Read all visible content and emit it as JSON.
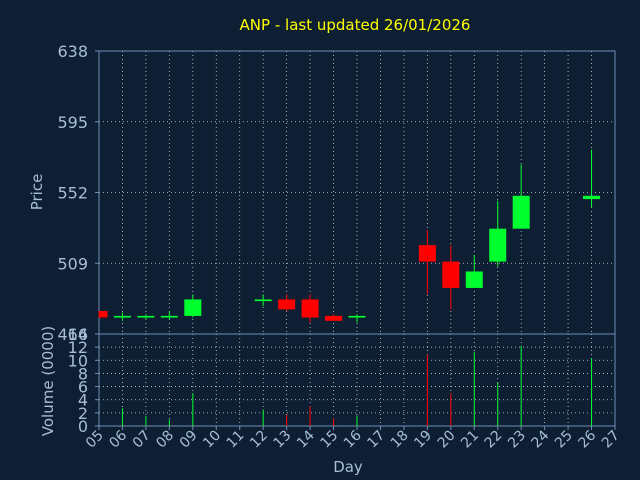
{
  "colors": {
    "background": "#0e1f33",
    "axis": "#6f8fb5",
    "label": "#a7bdd8",
    "title": "#ffff00",
    "grid": "#c8d4e0",
    "up": "#00ff2e",
    "down": "#ff0000"
  },
  "chart_data": {
    "type": "candlestick",
    "title": "ANP - last updated 26/01/2026",
    "xlabel": "Day",
    "price_panel": {
      "ylabel": "Price",
      "ylim": [
        466,
        638
      ],
      "yticks": [
        "638",
        "595",
        "552",
        "509",
        "466"
      ],
      "ytick_values": [
        638,
        595,
        552,
        509,
        466
      ]
    },
    "volume_panel": {
      "ylabel": "Volume (0000)",
      "ylim": [
        0,
        14
      ],
      "yticks": [
        "0",
        "2",
        "4",
        "6",
        "8",
        "10",
        "12",
        "14"
      ],
      "ytick_values": [
        0,
        2,
        4,
        6,
        8,
        10,
        12,
        14
      ]
    },
    "x_categories": [
      "05",
      "06",
      "07",
      "08",
      "09",
      "10",
      "11",
      "12",
      "13",
      "14",
      "15",
      "16",
      "17",
      "18",
      "19",
      "20",
      "21",
      "22",
      "23",
      "24",
      "25",
      "26",
      "27"
    ],
    "grid": true,
    "candles": [
      {
        "day": "05",
        "open": 480.0,
        "close": 476.0,
        "high": 480.0,
        "low": 476.0,
        "volume": 0.0
      },
      {
        "day": "06",
        "open": 476.0,
        "close": 477.0,
        "high": 479.0,
        "low": 474.0,
        "volume": 2.7
      },
      {
        "day": "07",
        "open": 476.0,
        "close": 477.0,
        "high": 478.0,
        "low": 475.0,
        "volume": 1.5
      },
      {
        "day": "08",
        "open": 476.0,
        "close": 477.0,
        "high": 480.0,
        "low": 475.0,
        "volume": 1.0
      },
      {
        "day": "09",
        "open": 477.0,
        "close": 487.0,
        "high": 490.0,
        "low": 476.0,
        "volume": 5.0
      },
      {
        "day": "12",
        "open": 486.0,
        "close": 487.0,
        "high": 490.0,
        "low": 483.0,
        "volume": 2.5
      },
      {
        "day": "13",
        "open": 487.0,
        "close": 481.0,
        "high": 490.0,
        "low": 480.0,
        "volume": 1.7
      },
      {
        "day": "14",
        "open": 487.0,
        "close": 476.0,
        "high": 490.0,
        "low": 473.0,
        "volume": 3.0
      },
      {
        "day": "15",
        "open": 477.0,
        "close": 474.0,
        "high": 478.0,
        "low": 474.0,
        "volume": 1.2
      },
      {
        "day": "16",
        "open": 476.0,
        "close": 477.0,
        "high": 478.0,
        "low": 473.0,
        "volume": 1.6
      },
      {
        "day": "19",
        "open": 520.0,
        "close": 510.0,
        "high": 529.0,
        "low": 490.0,
        "volume": 10.9
      },
      {
        "day": "20",
        "open": 510.0,
        "close": 494.0,
        "high": 520.0,
        "low": 481.0,
        "volume": 5.0
      },
      {
        "day": "21",
        "open": 494.0,
        "close": 504.0,
        "high": 514.0,
        "low": 494.0,
        "volume": 11.3
      },
      {
        "day": "22",
        "open": 510.0,
        "close": 530.0,
        "high": 547.0,
        "low": 507.0,
        "volume": 6.6
      },
      {
        "day": "23",
        "open": 530.0,
        "close": 550.0,
        "high": 569.0,
        "low": 530.0,
        "volume": 12.2
      },
      {
        "day": "26",
        "open": 548.0,
        "close": 550.0,
        "high": 578.0,
        "low": 543.0,
        "volume": 10.3
      }
    ]
  }
}
